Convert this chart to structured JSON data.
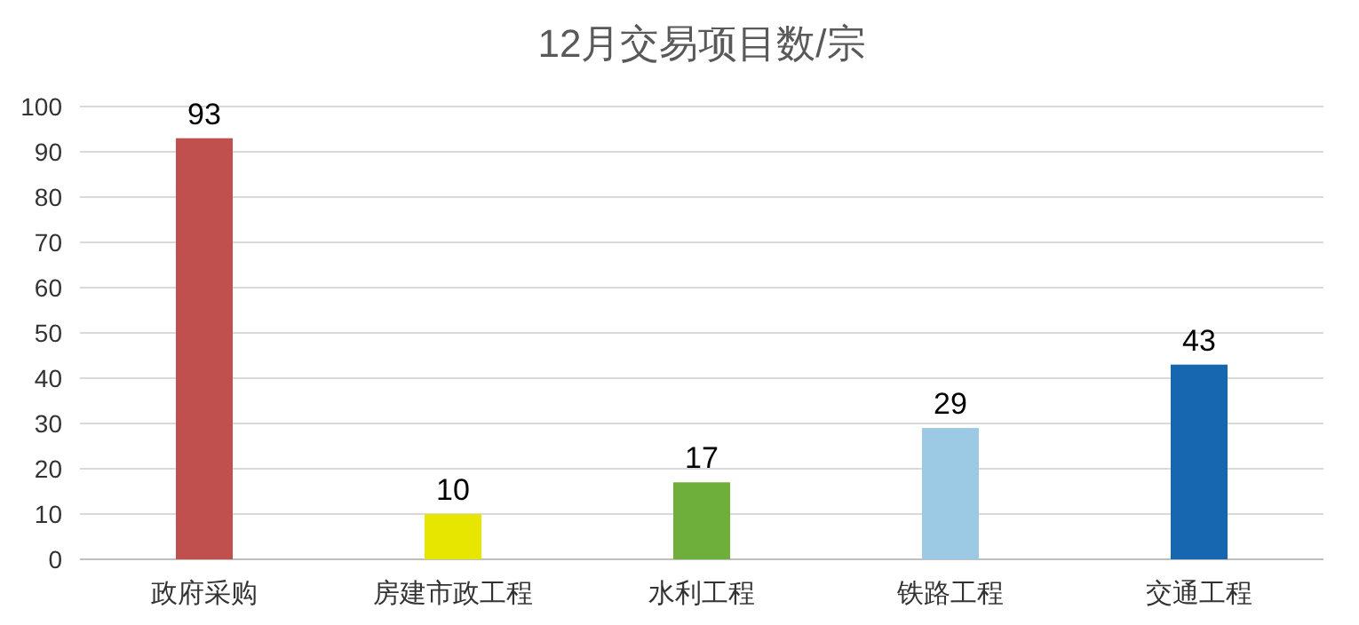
{
  "chart_data": {
    "type": "bar",
    "title": "12月交易项目数/宗",
    "categories": [
      "政府采购",
      "房建市政工程",
      "水利工程",
      "铁路工程",
      "交通工程"
    ],
    "values": [
      93,
      10,
      17,
      29,
      43
    ],
    "colors": [
      "#c0504d",
      "#e6e600",
      "#6eae3a",
      "#9cc9e4",
      "#1766b0"
    ],
    "ylim": [
      0,
      100
    ],
    "yticks": [
      0,
      10,
      20,
      30,
      40,
      50,
      60,
      70,
      80,
      90,
      100
    ],
    "grid": "y",
    "data_labels": true
  }
}
